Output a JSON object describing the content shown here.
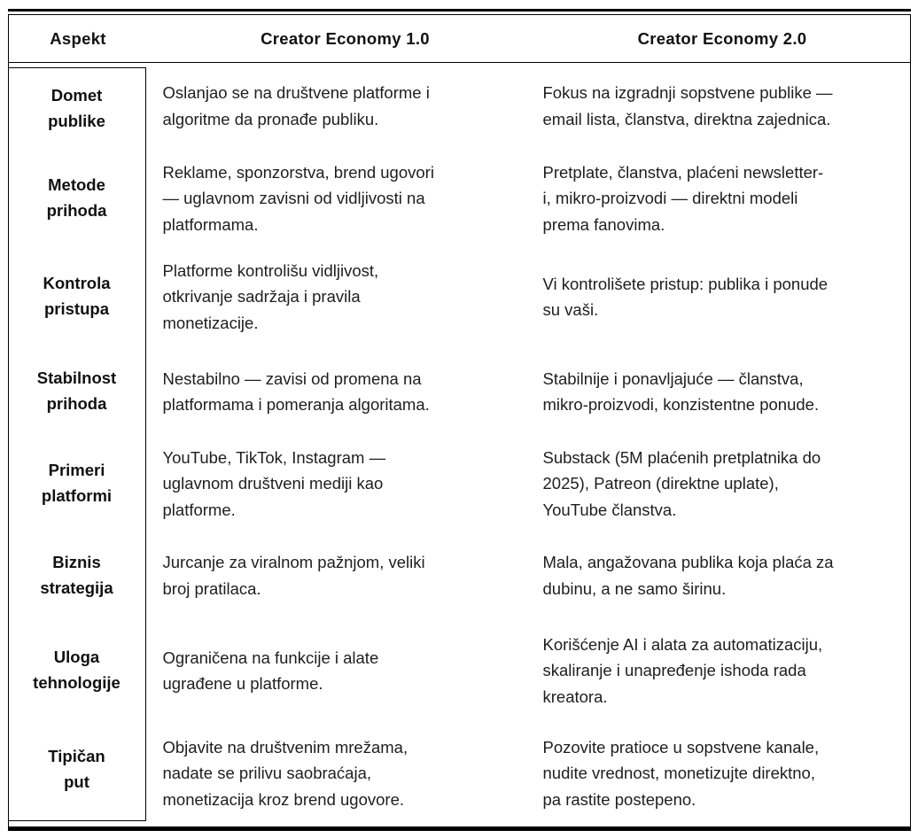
{
  "page": {
    "background": "#ffffff",
    "border_color": "#000000",
    "heading_text_color": "#111111",
    "body_text_color": "#1e1e1e"
  },
  "table": {
    "columns": [
      "Aspekt",
      "Creator Economy 1.0",
      "Creator Economy 2.0"
    ],
    "rows": [
      {
        "aspect": "Domet\npublike",
        "economy1": "Oslanjao se na društvene platforme i\nalgoritme da pronađe publiku.",
        "economy2": "Fokus na izgradnji sopstvene publike —\nemail lista, članstva, direktna zajednica."
      },
      {
        "aspect": "Metode\nprihoda",
        "economy1": "Reklame, sponzorstva, brend ugovori\n— uglavnom zavisni od vidljivosti na\nplatformama.",
        "economy2": "Pretplate, članstva, plaćeni newsletter-\ni, mikro-proizvodi — direktni modeli\nprema fanovima."
      },
      {
        "aspect": "Kontrola\npristupa",
        "economy1": "Platforme kontrolišu vidljivost,\notkrivanje sadržaja i pravila\nmonetizacije.",
        "economy2": "Vi kontrolišete pristup: publika i ponude\nsu vaši."
      },
      {
        "aspect": "Stabilnost\nprihoda",
        "economy1": "Nestabilno — zavisi od promena na\nplatformama i pomeranja algoritama.",
        "economy2": "Stabilnije i ponavljajuće — članstva,\nmikro-proizvodi, konzistentne ponude."
      },
      {
        "aspect": "Primeri\nplatformi",
        "economy1": "YouTube, TikTok, Instagram —\nuglavnom društveni mediji kao\nplatforme.",
        "economy2": "Substack (5M plaćenih pretplatnika do\n2025), Patreon (direktne uplate),\nYouTube članstva."
      },
      {
        "aspect": "Biznis\nstrategija",
        "economy1": "Jurcanje za viralnom pažnjom, veliki\nbroj pratilaca.",
        "economy2": "Mala, angažovana publika koja plaća za\ndubinu, a ne samo širinu."
      },
      {
        "aspect": "Uloga\ntehnologije",
        "economy1": "Ograničena na funkcije i alate\nugrađene u platforme.",
        "economy2": "Korišćenje AI i alata za automatizaciju,\nskaliranje i unapređenje ishoda rada\nkreatora."
      },
      {
        "aspect": "Tipičan\nput",
        "economy1": "Objavite na društvenim mrežama,\nnadate se prilivu saobraćaja,\nmonetizacija kroz brend ugovore.",
        "economy2": "Pozovite pratioce u sopstvene kanale,\nnudite vrednost, monetizujte direktno,\npa rastite postepeno."
      }
    ]
  }
}
